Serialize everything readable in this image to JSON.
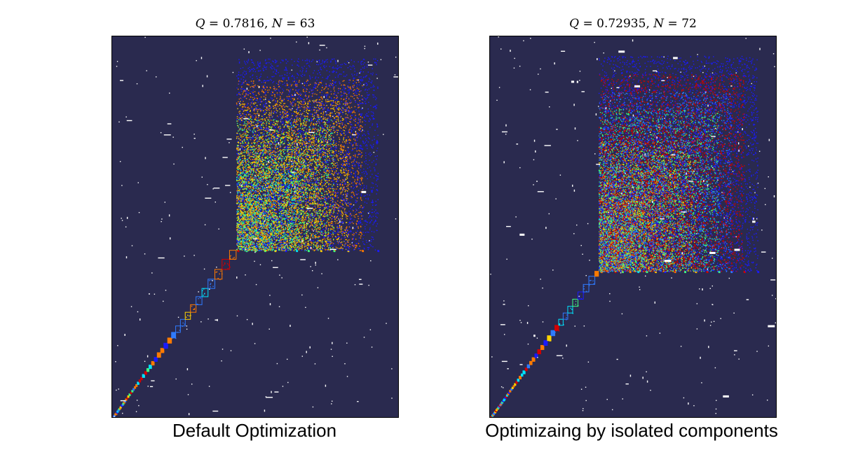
{
  "chart_data": [
    {
      "type": "heatmap",
      "title": "Q = 0.7816, N = 63",
      "title_parts": {
        "q_label": "Q",
        "q_value": "0.7816",
        "n_label": "N",
        "n_value": "63"
      },
      "caption": "Default Optimization",
      "n_communities": 63,
      "modularity": 0.7816
    },
    {
      "type": "heatmap",
      "title": "Q = 0.72935, N = 72",
      "title_parts": {
        "q_label": "Q",
        "q_value": "0.72935",
        "n_label": "N",
        "n_value": "72"
      },
      "caption": "Optimizaing by isolated components",
      "n_communities": 72,
      "modularity": 0.72935
    }
  ],
  "colors": {
    "background": "#2a2a4f",
    "palette": [
      "#00e5ff",
      "#1a1aff",
      "#2f7bff",
      "#ffd400",
      "#d40000",
      "#ff7a00",
      "#40ff80",
      "#ffffff"
    ]
  }
}
